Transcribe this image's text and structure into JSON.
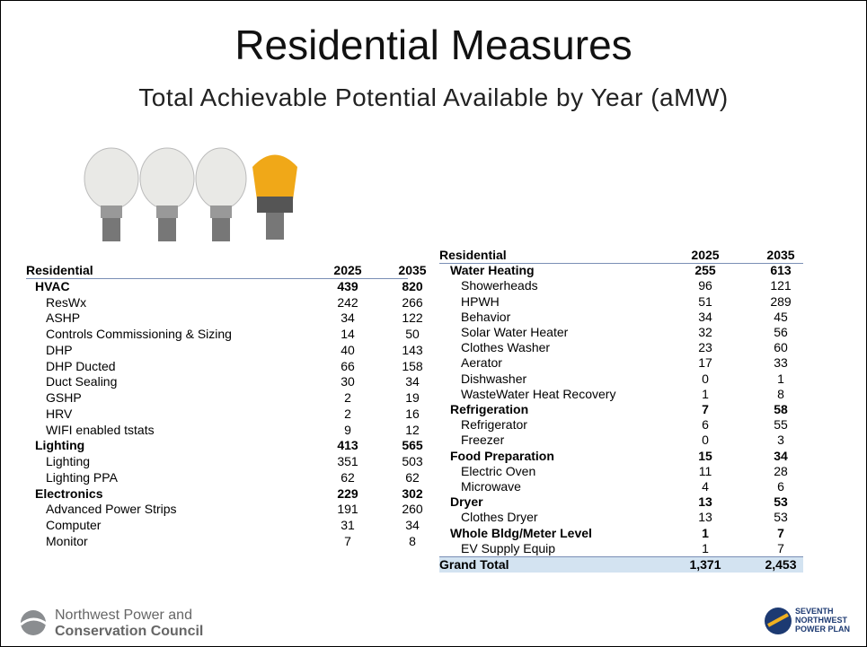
{
  "header": {
    "title": "Residential Measures",
    "subtitle": "Total Achievable Potential Available by Year (aMW)"
  },
  "left_table": {
    "columns": [
      "Residential",
      "2025",
      "2035"
    ],
    "groups": [
      {
        "name": "HVAC",
        "values": [
          439,
          820
        ],
        "items": [
          [
            "ResWx",
            242,
            266
          ],
          [
            "ASHP",
            34,
            122
          ],
          [
            "Controls Commissioning & Sizing",
            14,
            50
          ],
          [
            "DHP",
            40,
            143
          ],
          [
            "DHP Ducted",
            66,
            158
          ],
          [
            "Duct Sealing",
            30,
            34
          ],
          [
            "GSHP",
            2,
            19
          ],
          [
            "HRV",
            2,
            16
          ],
          [
            "WIFI enabled tstats",
            9,
            12
          ]
        ]
      },
      {
        "name": "Lighting",
        "values": [
          413,
          565
        ],
        "items": [
          [
            "Lighting",
            351,
            503
          ],
          [
            "Lighting PPA",
            62,
            62
          ]
        ]
      },
      {
        "name": "Electronics",
        "values": [
          229,
          302
        ],
        "items": [
          [
            "Advanced Power Strips",
            191,
            260
          ],
          [
            "Computer",
            31,
            34
          ],
          [
            "Monitor",
            7,
            8
          ]
        ]
      }
    ]
  },
  "right_table": {
    "columns": [
      "Residential",
      "2025",
      "2035"
    ],
    "groups": [
      {
        "name": "Water Heating",
        "values": [
          255,
          613
        ],
        "items": [
          [
            "Showerheads",
            96,
            121
          ],
          [
            "HPWH",
            51,
            289
          ],
          [
            "Behavior",
            34,
            45
          ],
          [
            "Solar Water Heater",
            32,
            56
          ],
          [
            "Clothes Washer",
            23,
            60
          ],
          [
            "Aerator",
            17,
            33
          ],
          [
            "Dishwasher",
            0,
            1
          ],
          [
            "WasteWater Heat Recovery",
            1,
            8
          ]
        ]
      },
      {
        "name": "Refrigeration",
        "values": [
          7,
          58
        ],
        "items": [
          [
            "Refrigerator",
            6,
            55
          ],
          [
            "Freezer",
            0,
            3
          ]
        ]
      },
      {
        "name": "Food Preparation",
        "values": [
          15,
          34
        ],
        "items": [
          [
            "Electric Oven",
            11,
            28
          ],
          [
            "Microwave",
            4,
            6
          ]
        ]
      },
      {
        "name": "Dryer",
        "values": [
          13,
          53
        ],
        "items": [
          [
            "Clothes Dryer",
            13,
            53
          ]
        ]
      },
      {
        "name": "Whole Bldg/Meter Level",
        "values": [
          1,
          7
        ],
        "items": [
          [
            "EV Supply Equip",
            1,
            7
          ]
        ]
      }
    ],
    "total": [
      "Grand Total",
      "1,371",
      "2,453"
    ]
  },
  "footer": {
    "left_logo": [
      "Northwest Power and",
      "Conservation Council"
    ],
    "right_logo": [
      "SEVENTH",
      "NORTHWEST",
      "POWER PLAN"
    ]
  }
}
